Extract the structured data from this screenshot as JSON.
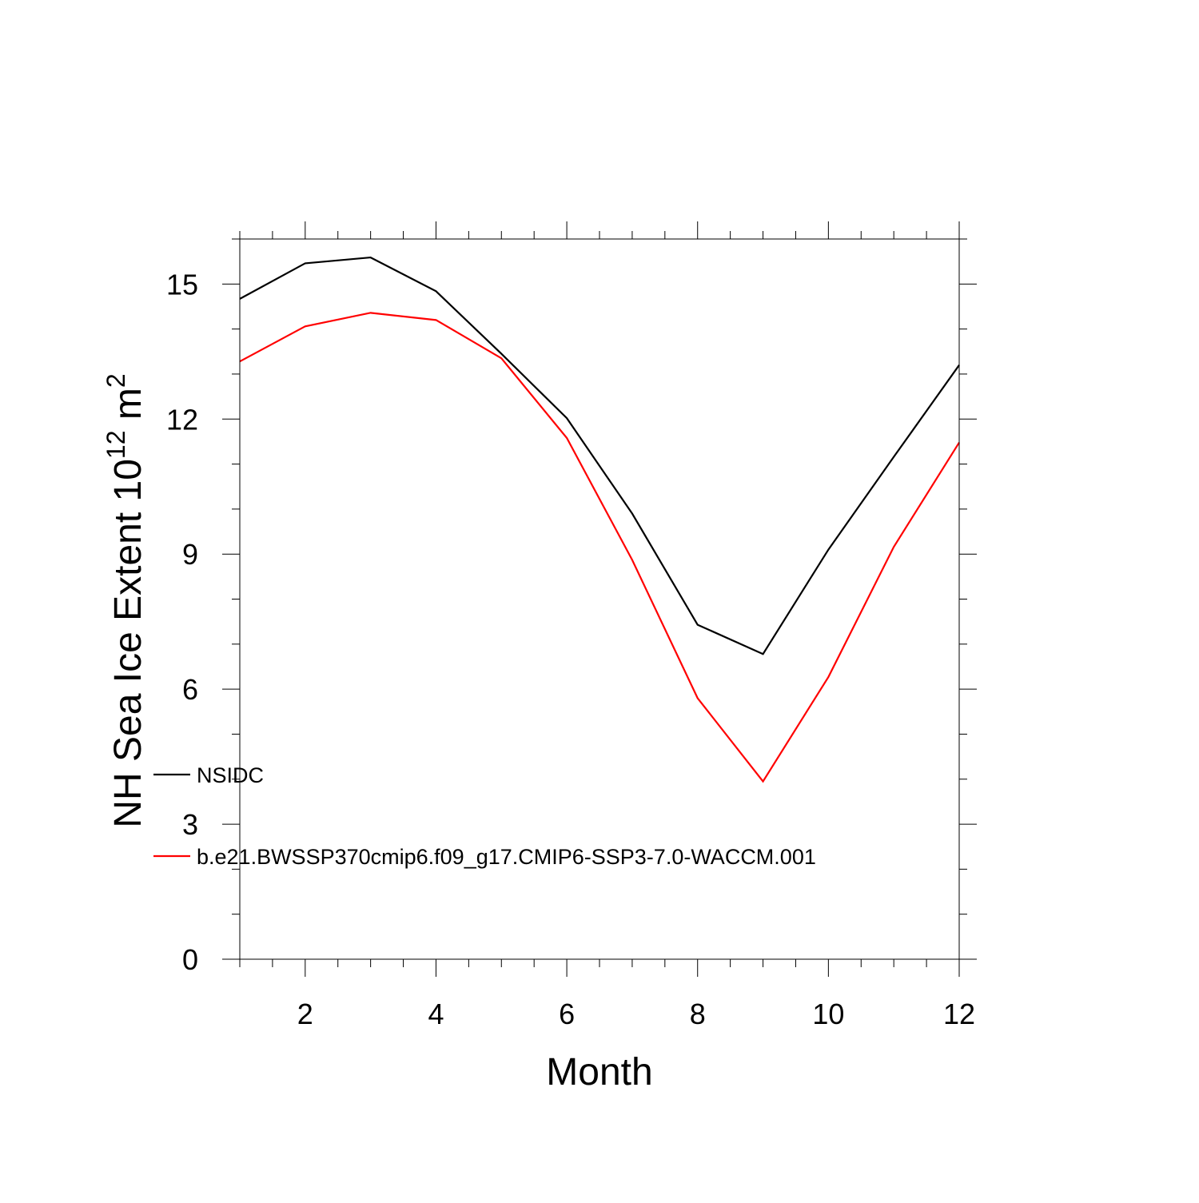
{
  "chart_data": {
    "type": "line",
    "title": "",
    "xlabel": "Month",
    "ylabel": {
      "main": "NH Sea Ice Extent 10",
      "exponent": "12",
      "unit": " m",
      "unit_exponent": "2"
    },
    "x": [
      1,
      2,
      3,
      4,
      5,
      6,
      7,
      8,
      9,
      10,
      11,
      12
    ],
    "xlim": [
      1,
      12
    ],
    "ylim": [
      0,
      16
    ],
    "xticks": [
      2,
      4,
      6,
      8,
      10,
      12
    ],
    "xtick_labels": [
      "2",
      "4",
      "6",
      "8",
      "10",
      "12"
    ],
    "yticks": [
      0,
      3,
      6,
      9,
      12,
      15
    ],
    "ytick_labels": [
      "0",
      "3",
      "6",
      "9",
      "12",
      "15"
    ],
    "grid": false,
    "legend_position": "left, inside plot",
    "series": [
      {
        "name": "NSIDC",
        "color": "#000000",
        "values": [
          14.67,
          15.46,
          15.59,
          14.84,
          13.45,
          12.02,
          9.9,
          7.43,
          6.78,
          9.1,
          11.16,
          13.2
        ]
      },
      {
        "name": "b.e21.BWSSP370cmip6.f09_g17.CMIP6-SSP3-7.0-WACCM.001",
        "color": "#ff0000",
        "values": [
          13.28,
          14.06,
          14.36,
          14.2,
          13.35,
          11.58,
          8.87,
          5.8,
          3.95,
          6.27,
          9.16,
          11.48
        ]
      }
    ]
  }
}
